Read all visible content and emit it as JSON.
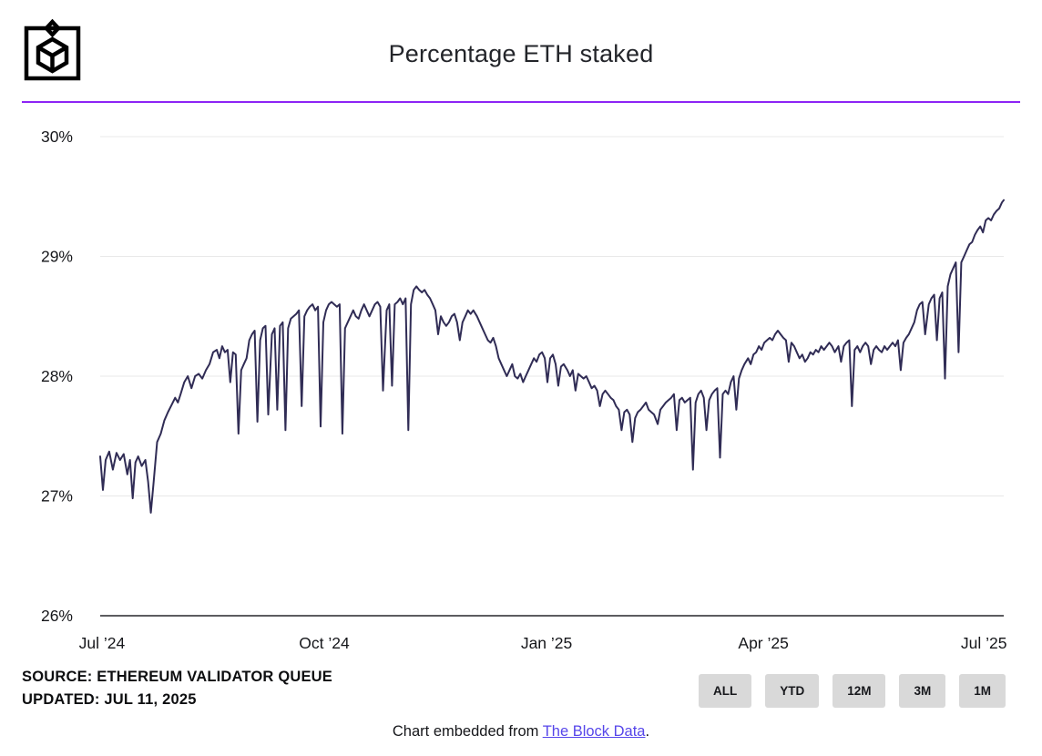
{
  "header": {
    "title": "Percentage ETH staked",
    "logo_icon": "the-block-cube-logo"
  },
  "theme": {
    "divider_color": "#8d24f5",
    "link_color": "#5646ea",
    "button_bg": "#d9d9d9",
    "logo_color": "#000000"
  },
  "footer": {
    "source_line": "SOURCE: ETHEREUM VALIDATOR QUEUE",
    "updated_line": "UPDATED: JUL 11, 2025",
    "range_buttons": [
      "ALL",
      "YTD",
      "12M",
      "3M",
      "1M"
    ],
    "embed_prefix": "Chart embedded from ",
    "embed_link_text": "The Block Data",
    "embed_suffix": "."
  },
  "chart_data": {
    "type": "line",
    "title": "Percentage ETH staked",
    "series_name": "Percentage ETH staked",
    "x_unit": "fraction of time axis, Jul 2024 through Jul 2025",
    "ylim": [
      26,
      30
    ],
    "grid": "horizontal",
    "legend": "none",
    "line_color": "#302c55",
    "grid_color": "#e8e8e8",
    "axis_color": "#26262b",
    "y_ticks": [
      {
        "value": 30,
        "label": "30%"
      },
      {
        "value": 29,
        "label": "29%"
      },
      {
        "value": 28,
        "label": "28%"
      },
      {
        "value": 27,
        "label": "27%"
      },
      {
        "value": 26,
        "label": "26%"
      }
    ],
    "x_ticks": [
      {
        "f": 0.002,
        "label": "Jul ’24"
      },
      {
        "f": 0.248,
        "label": "Oct ’24"
      },
      {
        "f": 0.494,
        "label": "Jan ’25"
      },
      {
        "f": 0.734,
        "label": "Apr ’25"
      },
      {
        "f": 0.978,
        "label": "Jul ’25"
      }
    ],
    "points": [
      [
        0.0,
        27.33
      ],
      [
        0.003,
        27.05
      ],
      [
        0.006,
        27.3
      ],
      [
        0.01,
        27.37
      ],
      [
        0.014,
        27.22
      ],
      [
        0.018,
        27.36
      ],
      [
        0.022,
        27.3
      ],
      [
        0.026,
        27.35
      ],
      [
        0.03,
        27.18
      ],
      [
        0.033,
        27.3
      ],
      [
        0.036,
        26.98
      ],
      [
        0.039,
        27.28
      ],
      [
        0.042,
        27.33
      ],
      [
        0.046,
        27.25
      ],
      [
        0.05,
        27.3
      ],
      [
        0.053,
        27.12
      ],
      [
        0.056,
        26.86
      ],
      [
        0.059,
        27.1
      ],
      [
        0.063,
        27.45
      ],
      [
        0.067,
        27.52
      ],
      [
        0.071,
        27.63
      ],
      [
        0.075,
        27.7
      ],
      [
        0.079,
        27.76
      ],
      [
        0.083,
        27.82
      ],
      [
        0.086,
        27.78
      ],
      [
        0.089,
        27.85
      ],
      [
        0.093,
        27.95
      ],
      [
        0.097,
        28.0
      ],
      [
        0.101,
        27.9
      ],
      [
        0.105,
        28.0
      ],
      [
        0.109,
        28.02
      ],
      [
        0.113,
        27.98
      ],
      [
        0.117,
        28.05
      ],
      [
        0.121,
        28.1
      ],
      [
        0.125,
        28.2
      ],
      [
        0.129,
        28.22
      ],
      [
        0.132,
        28.15
      ],
      [
        0.135,
        28.25
      ],
      [
        0.138,
        28.2
      ],
      [
        0.141,
        28.22
      ],
      [
        0.144,
        27.95
      ],
      [
        0.147,
        28.2
      ],
      [
        0.15,
        28.18
      ],
      [
        0.153,
        27.52
      ],
      [
        0.156,
        28.05
      ],
      [
        0.159,
        28.1
      ],
      [
        0.162,
        28.15
      ],
      [
        0.165,
        28.3
      ],
      [
        0.168,
        28.35
      ],
      [
        0.171,
        28.38
      ],
      [
        0.174,
        27.62
      ],
      [
        0.177,
        28.3
      ],
      [
        0.18,
        28.4
      ],
      [
        0.183,
        28.42
      ],
      [
        0.186,
        27.68
      ],
      [
        0.19,
        28.35
      ],
      [
        0.193,
        28.4
      ],
      [
        0.196,
        27.72
      ],
      [
        0.199,
        28.42
      ],
      [
        0.202,
        28.45
      ],
      [
        0.205,
        27.55
      ],
      [
        0.208,
        28.4
      ],
      [
        0.211,
        28.48
      ],
      [
        0.214,
        28.5
      ],
      [
        0.217,
        28.52
      ],
      [
        0.22,
        28.55
      ],
      [
        0.223,
        27.75
      ],
      [
        0.226,
        28.5
      ],
      [
        0.229,
        28.55
      ],
      [
        0.232,
        28.58
      ],
      [
        0.235,
        28.6
      ],
      [
        0.238,
        28.55
      ],
      [
        0.241,
        28.58
      ],
      [
        0.244,
        27.58
      ],
      [
        0.247,
        28.45
      ],
      [
        0.25,
        28.55
      ],
      [
        0.253,
        28.6
      ],
      [
        0.256,
        28.62
      ],
      [
        0.259,
        28.6
      ],
      [
        0.262,
        28.58
      ],
      [
        0.265,
        28.6
      ],
      [
        0.268,
        27.52
      ],
      [
        0.271,
        28.4
      ],
      [
        0.274,
        28.45
      ],
      [
        0.277,
        28.5
      ],
      [
        0.28,
        28.55
      ],
      [
        0.283,
        28.5
      ],
      [
        0.286,
        28.48
      ],
      [
        0.289,
        28.55
      ],
      [
        0.292,
        28.6
      ],
      [
        0.295,
        28.55
      ],
      [
        0.298,
        28.5
      ],
      [
        0.301,
        28.55
      ],
      [
        0.304,
        28.6
      ],
      [
        0.307,
        28.62
      ],
      [
        0.31,
        28.58
      ],
      [
        0.313,
        27.88
      ],
      [
        0.317,
        28.55
      ],
      [
        0.32,
        28.6
      ],
      [
        0.323,
        27.92
      ],
      [
        0.326,
        28.6
      ],
      [
        0.329,
        28.62
      ],
      [
        0.332,
        28.65
      ],
      [
        0.335,
        28.6
      ],
      [
        0.338,
        28.65
      ],
      [
        0.341,
        27.55
      ],
      [
        0.344,
        28.6
      ],
      [
        0.347,
        28.72
      ],
      [
        0.35,
        28.75
      ],
      [
        0.353,
        28.72
      ],
      [
        0.356,
        28.7
      ],
      [
        0.359,
        28.72
      ],
      [
        0.362,
        28.68
      ],
      [
        0.365,
        28.65
      ],
      [
        0.368,
        28.6
      ],
      [
        0.371,
        28.55
      ],
      [
        0.374,
        28.35
      ],
      [
        0.377,
        28.5
      ],
      [
        0.38,
        28.45
      ],
      [
        0.383,
        28.42
      ],
      [
        0.386,
        28.45
      ],
      [
        0.389,
        28.5
      ],
      [
        0.392,
        28.52
      ],
      [
        0.395,
        28.45
      ],
      [
        0.398,
        28.3
      ],
      [
        0.401,
        28.45
      ],
      [
        0.404,
        28.5
      ],
      [
        0.407,
        28.55
      ],
      [
        0.41,
        28.52
      ],
      [
        0.413,
        28.55
      ],
      [
        0.417,
        28.5
      ],
      [
        0.42,
        28.45
      ],
      [
        0.423,
        28.4
      ],
      [
        0.426,
        28.35
      ],
      [
        0.429,
        28.3
      ],
      [
        0.432,
        28.28
      ],
      [
        0.435,
        28.32
      ],
      [
        0.438,
        28.25
      ],
      [
        0.441,
        28.15
      ],
      [
        0.444,
        28.1
      ],
      [
        0.447,
        28.05
      ],
      [
        0.45,
        28.0
      ],
      [
        0.453,
        28.05
      ],
      [
        0.456,
        28.1
      ],
      [
        0.459,
        28.0
      ],
      [
        0.462,
        27.98
      ],
      [
        0.465,
        28.02
      ],
      [
        0.468,
        27.95
      ],
      [
        0.471,
        28.0
      ],
      [
        0.474,
        28.05
      ],
      [
        0.477,
        28.1
      ],
      [
        0.48,
        28.15
      ],
      [
        0.483,
        28.12
      ],
      [
        0.486,
        28.18
      ],
      [
        0.489,
        28.2
      ],
      [
        0.492,
        28.15
      ],
      [
        0.495,
        27.95
      ],
      [
        0.498,
        28.15
      ],
      [
        0.501,
        28.18
      ],
      [
        0.504,
        28.1
      ],
      [
        0.507,
        27.92
      ],
      [
        0.51,
        28.08
      ],
      [
        0.513,
        28.1
      ],
      [
        0.517,
        28.05
      ],
      [
        0.52,
        28.0
      ],
      [
        0.523,
        28.05
      ],
      [
        0.526,
        27.88
      ],
      [
        0.529,
        28.02
      ],
      [
        0.532,
        28.0
      ],
      [
        0.535,
        27.98
      ],
      [
        0.538,
        28.0
      ],
      [
        0.541,
        27.95
      ],
      [
        0.544,
        27.9
      ],
      [
        0.547,
        27.92
      ],
      [
        0.55,
        27.88
      ],
      [
        0.553,
        27.75
      ],
      [
        0.556,
        27.85
      ],
      [
        0.559,
        27.88
      ],
      [
        0.562,
        27.85
      ],
      [
        0.565,
        27.82
      ],
      [
        0.568,
        27.8
      ],
      [
        0.571,
        27.75
      ],
      [
        0.574,
        27.72
      ],
      [
        0.577,
        27.55
      ],
      [
        0.58,
        27.7
      ],
      [
        0.583,
        27.72
      ],
      [
        0.586,
        27.68
      ],
      [
        0.589,
        27.45
      ],
      [
        0.592,
        27.65
      ],
      [
        0.595,
        27.7
      ],
      [
        0.598,
        27.72
      ],
      [
        0.601,
        27.75
      ],
      [
        0.604,
        27.78
      ],
      [
        0.607,
        27.72
      ],
      [
        0.61,
        27.7
      ],
      [
        0.613,
        27.68
      ],
      [
        0.617,
        27.6
      ],
      [
        0.62,
        27.72
      ],
      [
        0.623,
        27.75
      ],
      [
        0.626,
        27.78
      ],
      [
        0.629,
        27.8
      ],
      [
        0.632,
        27.82
      ],
      [
        0.635,
        27.85
      ],
      [
        0.638,
        27.55
      ],
      [
        0.641,
        27.8
      ],
      [
        0.644,
        27.82
      ],
      [
        0.647,
        27.78
      ],
      [
        0.65,
        27.8
      ],
      [
        0.653,
        27.82
      ],
      [
        0.656,
        27.22
      ],
      [
        0.659,
        27.78
      ],
      [
        0.662,
        27.85
      ],
      [
        0.665,
        27.88
      ],
      [
        0.668,
        27.82
      ],
      [
        0.671,
        27.55
      ],
      [
        0.674,
        27.8
      ],
      [
        0.677,
        27.85
      ],
      [
        0.68,
        27.88
      ],
      [
        0.683,
        27.9
      ],
      [
        0.686,
        27.32
      ],
      [
        0.689,
        27.85
      ],
      [
        0.692,
        27.88
      ],
      [
        0.695,
        27.85
      ],
      [
        0.698,
        27.95
      ],
      [
        0.701,
        28.0
      ],
      [
        0.704,
        27.72
      ],
      [
        0.707,
        27.98
      ],
      [
        0.71,
        28.05
      ],
      [
        0.713,
        28.1
      ],
      [
        0.717,
        28.15
      ],
      [
        0.72,
        28.1
      ],
      [
        0.723,
        28.18
      ],
      [
        0.726,
        28.2
      ],
      [
        0.729,
        28.25
      ],
      [
        0.732,
        28.22
      ],
      [
        0.735,
        28.28
      ],
      [
        0.738,
        28.3
      ],
      [
        0.741,
        28.32
      ],
      [
        0.744,
        28.3
      ],
      [
        0.747,
        28.35
      ],
      [
        0.75,
        28.38
      ],
      [
        0.753,
        28.35
      ],
      [
        0.756,
        28.32
      ],
      [
        0.759,
        28.3
      ],
      [
        0.762,
        28.12
      ],
      [
        0.765,
        28.28
      ],
      [
        0.768,
        28.25
      ],
      [
        0.771,
        28.2
      ],
      [
        0.774,
        28.15
      ],
      [
        0.777,
        28.18
      ],
      [
        0.78,
        28.12
      ],
      [
        0.783,
        28.15
      ],
      [
        0.786,
        28.2
      ],
      [
        0.789,
        28.18
      ],
      [
        0.792,
        28.22
      ],
      [
        0.795,
        28.2
      ],
      [
        0.798,
        28.25
      ],
      [
        0.801,
        28.22
      ],
      [
        0.804,
        28.25
      ],
      [
        0.807,
        28.28
      ],
      [
        0.81,
        28.25
      ],
      [
        0.813,
        28.2
      ],
      [
        0.817,
        28.25
      ],
      [
        0.82,
        28.12
      ],
      [
        0.823,
        28.25
      ],
      [
        0.826,
        28.28
      ],
      [
        0.829,
        28.3
      ],
      [
        0.832,
        27.75
      ],
      [
        0.835,
        28.22
      ],
      [
        0.838,
        28.25
      ],
      [
        0.841,
        28.2
      ],
      [
        0.844,
        28.25
      ],
      [
        0.847,
        28.28
      ],
      [
        0.85,
        28.25
      ],
      [
        0.853,
        28.1
      ],
      [
        0.856,
        28.22
      ],
      [
        0.859,
        28.25
      ],
      [
        0.862,
        28.22
      ],
      [
        0.865,
        28.2
      ],
      [
        0.868,
        28.25
      ],
      [
        0.871,
        28.22
      ],
      [
        0.874,
        28.25
      ],
      [
        0.877,
        28.28
      ],
      [
        0.88,
        28.25
      ],
      [
        0.883,
        28.3
      ],
      [
        0.886,
        28.05
      ],
      [
        0.889,
        28.28
      ],
      [
        0.892,
        28.32
      ],
      [
        0.895,
        28.35
      ],
      [
        0.898,
        28.4
      ],
      [
        0.901,
        28.45
      ],
      [
        0.904,
        28.55
      ],
      [
        0.907,
        28.6
      ],
      [
        0.91,
        28.62
      ],
      [
        0.913,
        28.35
      ],
      [
        0.917,
        28.6
      ],
      [
        0.92,
        28.65
      ],
      [
        0.923,
        28.68
      ],
      [
        0.926,
        28.3
      ],
      [
        0.929,
        28.65
      ],
      [
        0.932,
        28.7
      ],
      [
        0.935,
        27.98
      ],
      [
        0.938,
        28.75
      ],
      [
        0.941,
        28.85
      ],
      [
        0.944,
        28.9
      ],
      [
        0.947,
        28.95
      ],
      [
        0.95,
        28.2
      ],
      [
        0.953,
        28.95
      ],
      [
        0.956,
        29.0
      ],
      [
        0.959,
        29.05
      ],
      [
        0.962,
        29.1
      ],
      [
        0.965,
        29.12
      ],
      [
        0.968,
        29.18
      ],
      [
        0.971,
        29.22
      ],
      [
        0.974,
        29.25
      ],
      [
        0.977,
        29.2
      ],
      [
        0.98,
        29.3
      ],
      [
        0.983,
        29.32
      ],
      [
        0.986,
        29.3
      ],
      [
        0.989,
        29.35
      ],
      [
        0.992,
        29.38
      ],
      [
        0.995,
        29.4
      ],
      [
        0.998,
        29.45
      ],
      [
        1.0,
        29.47
      ]
    ]
  }
}
